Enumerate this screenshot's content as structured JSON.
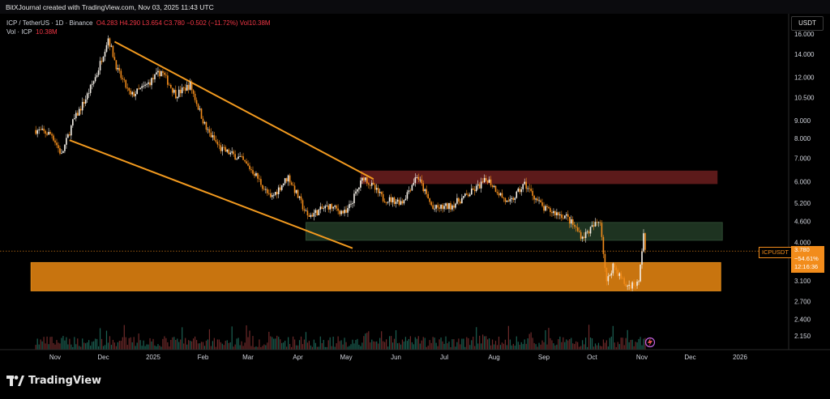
{
  "header": {
    "attribution": "BitXJournal created with TradingView.com, Nov 03, 2025 11:43 UTC"
  },
  "legend": {
    "symbol": "ICP / TetherUS · 1D · Binance",
    "ohlc": "O4.283 H4.290 L3.654 C3.780 −0.502 (−11.72%) Vol10.38M",
    "volume_label": "Vol · ICP",
    "volume_value": "10.38M"
  },
  "price_axis": {
    "unit": "USDT"
  },
  "last_price": {
    "ticker": "ICPUSDT",
    "price": "3.780",
    "change": "−54.61%",
    "countdown": "12:16:36"
  },
  "branding": {
    "logo_text": "TradingView"
  },
  "colors": {
    "background": "#000000",
    "candle_up": "#f5f0e8",
    "candle_down": "#f28c1b",
    "vol_up": "#1f6b5c",
    "vol_down": "#7a2f2f",
    "channel": "#f29a1f",
    "resistance_zone": "#5c1a1a",
    "support_zone": "#1e3321",
    "demand_zone": "#c8740f"
  },
  "chart_data": {
    "type": "candlestick",
    "scale": "log",
    "ylim": [
      1.9,
      17.0
    ],
    "y_ticks": [
      "16.000",
      "14.000",
      "12.000",
      "10.500",
      "9.000",
      "8.000",
      "7.000",
      "6.000",
      "5.200",
      "4.600",
      "4.000",
      "3.100",
      "2.700",
      "2.400",
      "2.150"
    ],
    "x_ticks": [
      "Nov",
      "Dec",
      "2025",
      "Feb",
      "Mar",
      "Apr",
      "May",
      "Jun",
      "Jul",
      "Aug",
      "Sep",
      "Oct",
      "Nov",
      "Dec",
      "2026"
    ],
    "series": [
      {
        "date": "2024-10-20",
        "close": 8.45
      },
      {
        "date": "2024-10-30",
        "close": 8.2
      },
      {
        "date": "2024-11-05",
        "close": 7.15
      },
      {
        "date": "2024-11-12",
        "close": 8.9
      },
      {
        "date": "2024-11-20",
        "close": 10.4
      },
      {
        "date": "2024-11-27",
        "close": 12.3
      },
      {
        "date": "2024-12-04",
        "close": 15.6
      },
      {
        "date": "2024-12-10",
        "close": 12.5
      },
      {
        "date": "2024-12-18",
        "close": 10.6
      },
      {
        "date": "2024-12-27",
        "close": 11.3
      },
      {
        "date": "2025-01-06",
        "close": 12.5
      },
      {
        "date": "2025-01-15",
        "close": 10.7
      },
      {
        "date": "2025-01-24",
        "close": 11.4
      },
      {
        "date": "2025-02-03",
        "close": 8.5
      },
      {
        "date": "2025-02-12",
        "close": 7.45
      },
      {
        "date": "2025-02-24",
        "close": 7.0
      },
      {
        "date": "2025-03-05",
        "close": 6.35
      },
      {
        "date": "2025-03-15",
        "close": 5.35
      },
      {
        "date": "2025-03-26",
        "close": 6.2
      },
      {
        "date": "2025-04-07",
        "close": 4.75
      },
      {
        "date": "2025-04-20",
        "close": 5.1
      },
      {
        "date": "2025-05-01",
        "close": 4.85
      },
      {
        "date": "2025-05-12",
        "close": 6.2
      },
      {
        "date": "2025-05-24",
        "close": 5.35
      },
      {
        "date": "2025-06-05",
        "close": 5.25
      },
      {
        "date": "2025-06-14",
        "close": 6.25
      },
      {
        "date": "2025-06-24",
        "close": 5.0
      },
      {
        "date": "2025-07-05",
        "close": 5.1
      },
      {
        "date": "2025-07-16",
        "close": 5.5
      },
      {
        "date": "2025-07-28",
        "close": 6.1
      },
      {
        "date": "2025-08-10",
        "close": 5.15
      },
      {
        "date": "2025-08-20",
        "close": 5.9
      },
      {
        "date": "2025-09-01",
        "close": 5.0
      },
      {
        "date": "2025-09-15",
        "close": 4.75
      },
      {
        "date": "2025-09-25",
        "close": 4.15
      },
      {
        "date": "2025-10-06",
        "close": 4.65
      },
      {
        "date": "2025-10-10",
        "close": 3.05
      },
      {
        "date": "2025-10-14",
        "close": 3.45
      },
      {
        "date": "2025-10-22",
        "close": 3.0
      },
      {
        "date": "2025-10-30",
        "close": 3.05
      },
      {
        "date": "2025-11-02",
        "close": 4.28
      },
      {
        "date": "2025-11-03",
        "close": 3.78
      }
    ]
  }
}
